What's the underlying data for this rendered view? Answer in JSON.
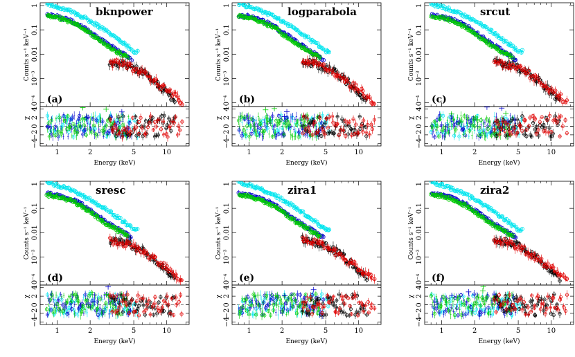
{
  "chart_data": {
    "type": "scatter",
    "layout": "2x3 grid of spectral fit panels with residual subpanels",
    "x_scale": "log",
    "x_label": "Energy (keV)",
    "x_range_keV": [
      0.7,
      16
    ],
    "x_ticks": [
      {
        "value": 1,
        "label": "1"
      },
      {
        "value": 2,
        "label": "2"
      },
      {
        "value": 5,
        "label": "5"
      },
      {
        "value": 10,
        "label": "10"
      }
    ],
    "upper_panel": {
      "y_scale": "log",
      "y_label": "Counts s⁻¹ keV⁻¹",
      "y_range": [
        7e-05,
        1.3
      ],
      "y_ticks": [
        {
          "value": 1,
          "label": "1"
        },
        {
          "value": 0.1,
          "label": "0.1"
        },
        {
          "value": 0.01,
          "label": "0.01"
        },
        {
          "value": 0.001,
          "label": "10⁻³"
        },
        {
          "value": 0.0001,
          "label": "10⁻⁴"
        }
      ]
    },
    "lower_panel": {
      "y_label": "χ",
      "y_range": [
        -4.6,
        4.6
      ],
      "y_ticks": [
        {
          "value": 4,
          "label": "4"
        },
        {
          "value": 2,
          "label": "2"
        },
        {
          "value": 0,
          "label": "0"
        },
        {
          "value": -2,
          "label": "−2"
        },
        {
          "value": -4,
          "label": "−4"
        }
      ]
    },
    "series": [
      {
        "color": "#00e5ee",
        "x_range_keV": [
          0.8,
          5.5
        ],
        "points": [
          [
            0.8,
            1.2
          ],
          [
            1.0,
            0.9
          ],
          [
            1.3,
            0.6
          ],
          [
            1.7,
            0.35
          ],
          [
            2.2,
            0.18
          ],
          [
            2.8,
            0.09
          ],
          [
            3.5,
            0.045
          ],
          [
            4.2,
            0.025
          ],
          [
            5.0,
            0.013
          ]
        ]
      },
      {
        "color": "#0000cc",
        "x_range_keV": [
          0.8,
          4.8
        ],
        "points": [
          [
            0.8,
            0.4
          ],
          [
            1.0,
            0.35
          ],
          [
            1.3,
            0.25
          ],
          [
            1.7,
            0.14
          ],
          [
            2.2,
            0.06
          ],
          [
            2.8,
            0.028
          ],
          [
            3.5,
            0.015
          ],
          [
            4.2,
            0.009
          ],
          [
            4.8,
            0.006
          ]
        ]
      },
      {
        "color": "#00cc00",
        "x_range_keV": [
          0.8,
          4.5
        ],
        "points": [
          [
            0.8,
            0.36
          ],
          [
            1.0,
            0.32
          ],
          [
            1.3,
            0.22
          ],
          [
            1.7,
            0.12
          ],
          [
            2.2,
            0.05
          ],
          [
            2.8,
            0.024
          ],
          [
            3.5,
            0.013
          ],
          [
            4.5,
            0.007
          ]
        ]
      },
      {
        "color": "#000000",
        "x_range_keV": [
          3.0,
          12.0
        ],
        "points": [
          [
            3.0,
            0.005
          ],
          [
            4.0,
            0.004
          ],
          [
            5.0,
            0.0028
          ],
          [
            6.0,
            0.0018
          ],
          [
            7.0,
            0.0011
          ],
          [
            8.0,
            0.0007
          ],
          [
            10.0,
            0.00028
          ],
          [
            12.0,
            0.00012
          ]
        ]
      },
      {
        "color": "#e00000",
        "x_range_keV": [
          3.0,
          14.0
        ],
        "points": [
          [
            3.0,
            0.0048
          ],
          [
            4.0,
            0.0038
          ],
          [
            5.0,
            0.0027
          ],
          [
            6.0,
            0.0017
          ],
          [
            7.0,
            0.0011
          ],
          [
            8.0,
            0.00068
          ],
          [
            10.0,
            0.00035
          ],
          [
            12.0,
            0.00018
          ],
          [
            14.0,
            0.0001
          ]
        ]
      }
    ],
    "panels": [
      {
        "title": "bknpower",
        "letter": "(a)"
      },
      {
        "title": "logparabola",
        "letter": "(b)"
      },
      {
        "title": "srcut",
        "letter": "(c)"
      },
      {
        "title": "sresc",
        "letter": "(d)"
      },
      {
        "title": "zira1",
        "letter": "(e)"
      },
      {
        "title": "zira2",
        "letter": "(f)"
      }
    ]
  }
}
